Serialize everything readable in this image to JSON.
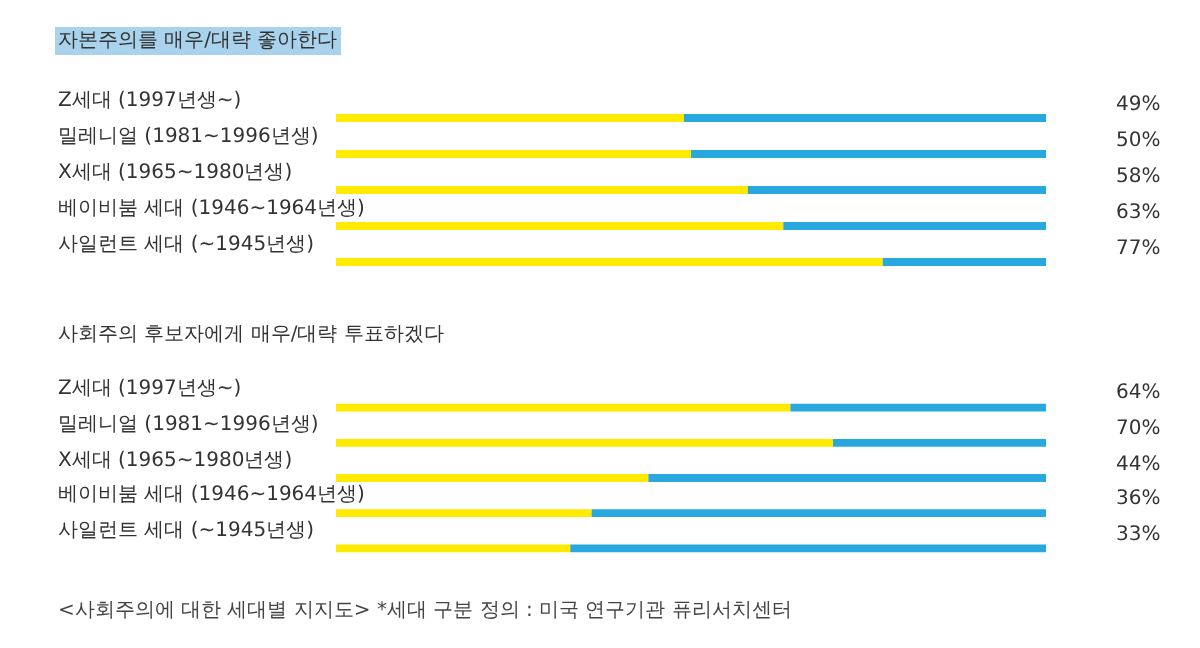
{
  "chart_data": [
    {
      "type": "bar",
      "orientation": "horizontal",
      "stacked": true,
      "title": "자본주의를 매우/대략 좋아한다",
      "categories": [
        "Z세대 (1997년생~)",
        "밀레니얼 (1981~1996년생)",
        "X세대 (1965~1980년생)",
        "베이비붐 세대 (1946~1964년생)",
        "사일런트 세대 (~1945년생)"
      ],
      "xlim": [
        0,
        100
      ],
      "tick_labels": "y",
      "series": [
        {
          "color": "#ffea00",
          "values": [
            49,
            50,
            58,
            63,
            77
          ],
          "value_labels": [
            "49%",
            "50%",
            "58%",
            "63%",
            "77%"
          ]
        },
        {
          "color": "#29a8e0",
          "values": [
            51,
            50,
            42,
            37,
            23
          ]
        }
      ]
    },
    {
      "type": "bar",
      "orientation": "horizontal",
      "stacked": true,
      "title": "사회주의 후보자에게 매우/대략 투표하겠다",
      "categories": [
        "Z세대 (1997년생~)",
        "밀레니얼 (1981~1996년생)",
        "X세대 (1965~1980년생)",
        "베이비붐 세대 (1946~1964년생)",
        "사일런트 세대 (~1945년생)"
      ],
      "xlim": [
        0,
        100
      ],
      "tick_labels": "y",
      "series": [
        {
          "color": "#ffea00",
          "values": [
            64,
            70,
            44,
            36,
            33
          ],
          "value_labels": [
            "64%",
            "70%",
            "44%",
            "36%",
            "33%"
          ]
        },
        {
          "color": "#29a8e0",
          "values": [
            36,
            30,
            56,
            64,
            67
          ]
        }
      ],
      "annotations": [
        "<사회주의에 대한 세대별 지지도> *세대 구분 정의 : 미국 연구기관 퓨리서치센터"
      ]
    }
  ]
}
